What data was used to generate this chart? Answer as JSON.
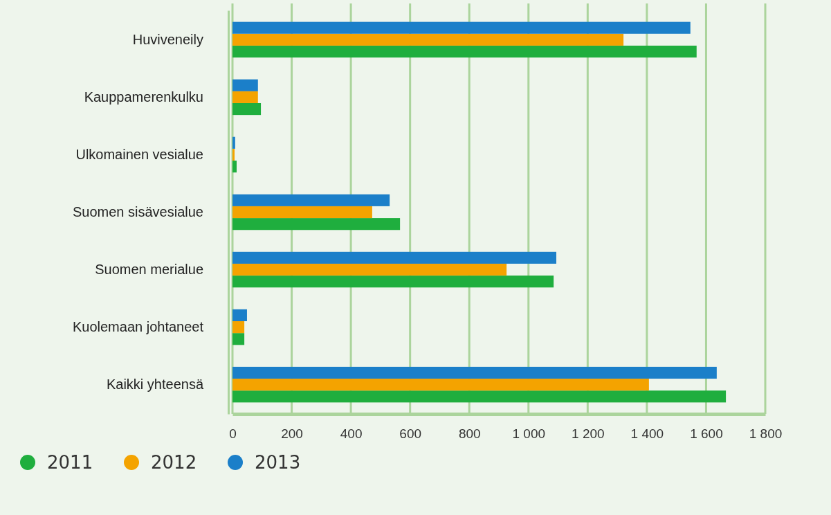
{
  "chart_data": {
    "type": "bar",
    "orientation": "horizontal",
    "categories": [
      "Huviveneily",
      "Kauppamerenkulku",
      "Ulkomainen vesialue",
      "Suomen sisävesialue",
      "Suomen merialue",
      "Kuolemaan johtaneet",
      "Kaikki yhteensä"
    ],
    "series": [
      {
        "name": "2011",
        "color": "#1fae3e",
        "values": [
          1568,
          96,
          14,
          566,
          1085,
          40,
          1667
        ]
      },
      {
        "name": "2012",
        "color": "#f4a300",
        "values": [
          1321,
          86,
          7,
          472,
          926,
          40,
          1407
        ]
      },
      {
        "name": "2013",
        "color": "#1b7fc9",
        "values": [
          1547,
          86,
          9,
          531,
          1094,
          49,
          1636
        ]
      }
    ],
    "xlim": [
      0,
      1800
    ],
    "xticks": [
      0,
      200,
      400,
      600,
      800,
      {
        "value": 1000,
        "label": "1 000"
      },
      {
        "value": 1200,
        "label": "1 200"
      },
      {
        "value": 1400,
        "label": "1 400"
      },
      {
        "value": 1600,
        "label": "1 600"
      },
      {
        "value": 1800,
        "label": "1 800"
      }
    ],
    "grid": "x",
    "legend": "bottom left"
  }
}
